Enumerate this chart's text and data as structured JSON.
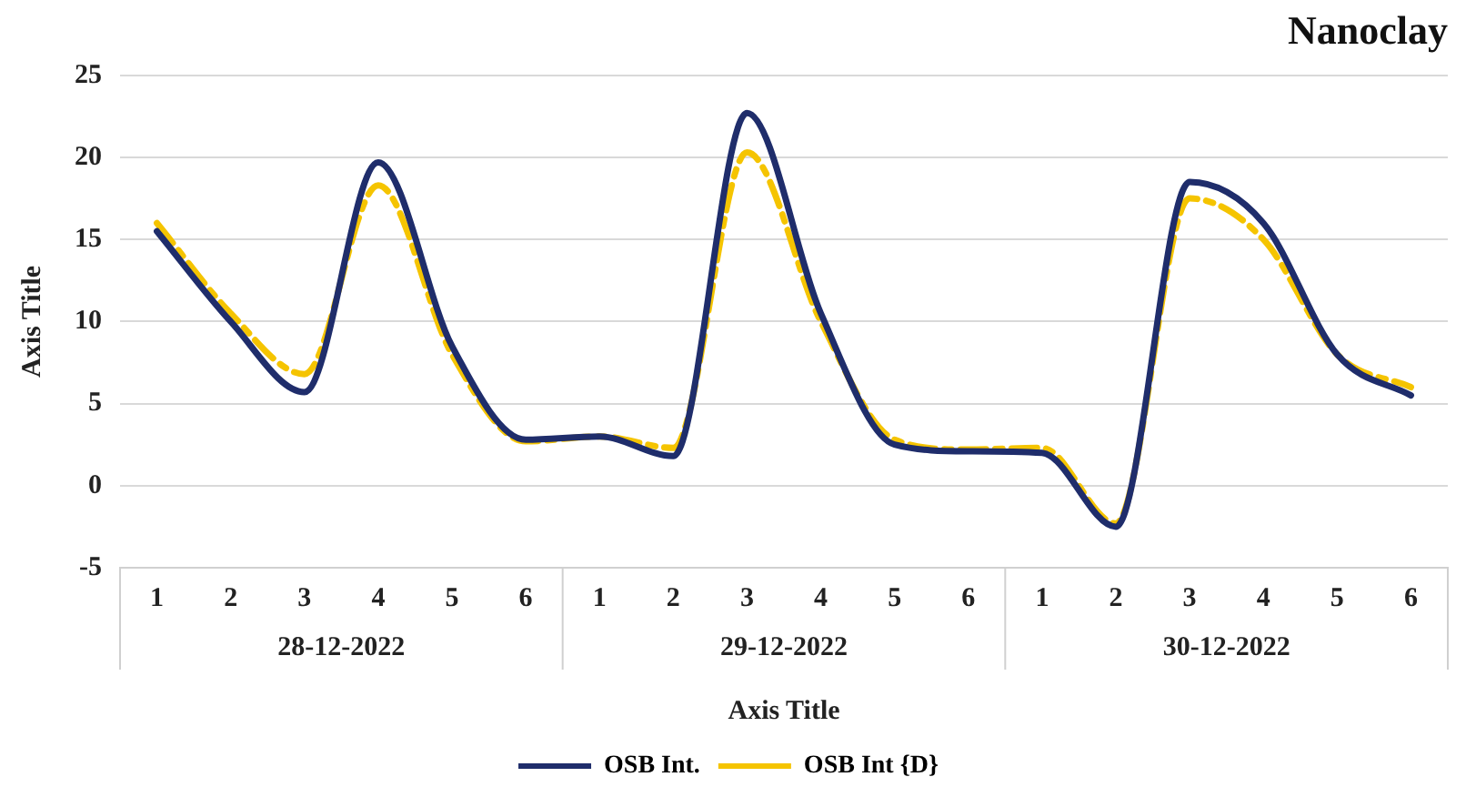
{
  "chart_data": {
    "type": "line",
    "title": "Nanoclay",
    "xlabel": "Axis Title",
    "ylabel": "Axis Title",
    "categories": [
      "1",
      "2",
      "3",
      "4",
      "5",
      "6",
      "1",
      "2",
      "3",
      "4",
      "5",
      "6",
      "1",
      "2",
      "3",
      "4",
      "5",
      "6"
    ],
    "annotations": [
      "28-12-2022",
      "29-12-2022",
      "30-12-2022"
    ],
    "series": [
      {
        "name": "OSB Int.",
        "color": "#1f2d6b",
        "line_style": "solid",
        "values": [
          15.5,
          10,
          5.7,
          19.7,
          8.5,
          2.8,
          3,
          1.8,
          22.7,
          10.5,
          2.5,
          2.1,
          2,
          -2.5,
          18.5,
          16,
          8,
          5.5
        ]
      },
      {
        "name": "OSB Int {D}",
        "color": "#f5c400",
        "line_style": "dashed",
        "values": [
          16,
          10.5,
          6.8,
          18.3,
          8,
          2.7,
          3,
          2.3,
          20.3,
          10,
          2.8,
          2.2,
          2.3,
          -2.3,
          17.5,
          15,
          8,
          6
        ]
      }
    ],
    "ylim": [
      -5,
      25
    ],
    "yticks": [
      -5,
      0,
      5,
      10,
      15,
      20,
      25
    ],
    "grid": "y",
    "legend": "bottom",
    "marker": "none"
  }
}
